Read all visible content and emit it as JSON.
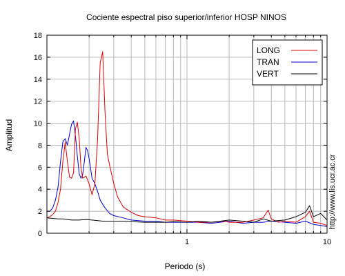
{
  "chart_data": {
    "type": "line",
    "title": "Cociente espectral piso superior/inferior  HOSP NINOS",
    "xlabel": "Periodo (s)",
    "ylabel": "Amplitud",
    "x_scale": "log",
    "xlim": [
      0.1,
      10
    ],
    "ylim": [
      0,
      18
    ],
    "x_ticks": [
      {
        "value": 1,
        "label": "1"
      },
      {
        "value": 10,
        "label": "10"
      }
    ],
    "y_ticks": [
      0,
      2,
      4,
      6,
      8,
      10,
      12,
      14,
      16,
      18
    ],
    "grid": true,
    "legend_position": "top-right",
    "series": [
      {
        "name": "LONG",
        "color": "#e00000",
        "points": [
          [
            0.1,
            1.4
          ],
          [
            0.105,
            1.5
          ],
          [
            0.11,
            1.7
          ],
          [
            0.115,
            2.0
          ],
          [
            0.12,
            2.8
          ],
          [
            0.125,
            4.0
          ],
          [
            0.13,
            6.5
          ],
          [
            0.135,
            8.3
          ],
          [
            0.14,
            6.5
          ],
          [
            0.145,
            5.1
          ],
          [
            0.15,
            5.0
          ],
          [
            0.155,
            5.5
          ],
          [
            0.16,
            9.5
          ],
          [
            0.165,
            10.1
          ],
          [
            0.17,
            8.6
          ],
          [
            0.175,
            6.0
          ],
          [
            0.18,
            5.0
          ],
          [
            0.19,
            5.2
          ],
          [
            0.2,
            4.5
          ],
          [
            0.21,
            3.5
          ],
          [
            0.22,
            4.5
          ],
          [
            0.23,
            8.5
          ],
          [
            0.24,
            15.5
          ],
          [
            0.25,
            16.5
          ],
          [
            0.26,
            11.0
          ],
          [
            0.27,
            7.2
          ],
          [
            0.28,
            6.2
          ],
          [
            0.3,
            4.5
          ],
          [
            0.32,
            3.3
          ],
          [
            0.35,
            2.4
          ],
          [
            0.4,
            1.9
          ],
          [
            0.45,
            1.6
          ],
          [
            0.5,
            1.5
          ],
          [
            0.6,
            1.4
          ],
          [
            0.7,
            1.2
          ],
          [
            0.8,
            1.2
          ],
          [
            1.0,
            1.1
          ],
          [
            1.2,
            1.0
          ],
          [
            1.5,
            1.0
          ],
          [
            1.8,
            1.1
          ],
          [
            2.0,
            1.0
          ],
          [
            2.5,
            1.0
          ],
          [
            3.0,
            1.2
          ],
          [
            3.5,
            1.4
          ],
          [
            3.8,
            2.1
          ],
          [
            4.0,
            1.3
          ],
          [
            4.5,
            1.0
          ],
          [
            5.0,
            1.1
          ],
          [
            6.0,
            1.0
          ],
          [
            7.0,
            1.5
          ],
          [
            7.5,
            2.0
          ],
          [
            8.0,
            1.0
          ],
          [
            9.0,
            0.9
          ],
          [
            10.0,
            0.7
          ]
        ]
      },
      {
        "name": "TRAN",
        "color": "#0000cc",
        "points": [
          [
            0.1,
            2.0
          ],
          [
            0.105,
            2.0
          ],
          [
            0.11,
            2.3
          ],
          [
            0.115,
            3.0
          ],
          [
            0.12,
            4.2
          ],
          [
            0.125,
            6.5
          ],
          [
            0.13,
            8.3
          ],
          [
            0.135,
            8.6
          ],
          [
            0.14,
            8.0
          ],
          [
            0.145,
            9.0
          ],
          [
            0.15,
            9.9
          ],
          [
            0.155,
            10.2
          ],
          [
            0.16,
            8.8
          ],
          [
            0.165,
            7.0
          ],
          [
            0.17,
            5.4
          ],
          [
            0.175,
            5.0
          ],
          [
            0.18,
            5.3
          ],
          [
            0.185,
            6.5
          ],
          [
            0.19,
            7.8
          ],
          [
            0.195,
            7.5
          ],
          [
            0.2,
            6.8
          ],
          [
            0.21,
            5.0
          ],
          [
            0.22,
            4.5
          ],
          [
            0.23,
            3.8
          ],
          [
            0.24,
            3.0
          ],
          [
            0.26,
            2.3
          ],
          [
            0.28,
            1.8
          ],
          [
            0.3,
            1.6
          ],
          [
            0.35,
            1.4
          ],
          [
            0.4,
            1.2
          ],
          [
            0.5,
            1.1
          ],
          [
            0.6,
            1.1
          ],
          [
            0.7,
            1.0
          ],
          [
            0.8,
            1.0
          ],
          [
            1.0,
            1.0
          ],
          [
            1.2,
            1.0
          ],
          [
            1.5,
            0.9
          ],
          [
            2.0,
            1.1
          ],
          [
            2.5,
            0.9
          ],
          [
            3.0,
            1.0
          ],
          [
            3.5,
            1.0
          ],
          [
            4.0,
            1.1
          ],
          [
            5.0,
            1.0
          ],
          [
            6.0,
            0.9
          ],
          [
            7.0,
            1.1
          ],
          [
            8.0,
            0.8
          ],
          [
            9.0,
            0.7
          ],
          [
            10.0,
            0.6
          ]
        ]
      },
      {
        "name": "VERT",
        "color": "#000000",
        "points": [
          [
            0.1,
            1.4
          ],
          [
            0.11,
            1.35
          ],
          [
            0.12,
            1.3
          ],
          [
            0.13,
            1.3
          ],
          [
            0.14,
            1.25
          ],
          [
            0.15,
            1.2
          ],
          [
            0.17,
            1.2
          ],
          [
            0.19,
            1.25
          ],
          [
            0.21,
            1.2
          ],
          [
            0.25,
            1.1
          ],
          [
            0.3,
            1.1
          ],
          [
            0.35,
            1.1
          ],
          [
            0.4,
            1.05
          ],
          [
            0.5,
            1.0
          ],
          [
            0.6,
            1.0
          ],
          [
            0.7,
            1.0
          ],
          [
            0.8,
            1.05
          ],
          [
            1.0,
            1.0
          ],
          [
            1.2,
            1.1
          ],
          [
            1.5,
            1.0
          ],
          [
            2.0,
            1.2
          ],
          [
            2.5,
            1.1
          ],
          [
            3.0,
            1.0
          ],
          [
            3.5,
            1.3
          ],
          [
            4.0,
            1.1
          ],
          [
            5.0,
            1.2
          ],
          [
            6.0,
            1.5
          ],
          [
            7.0,
            1.9
          ],
          [
            7.5,
            2.5
          ],
          [
            8.0,
            1.5
          ],
          [
            9.0,
            1.8
          ],
          [
            10.0,
            1.2
          ]
        ]
      }
    ]
  },
  "side_text": "http://www.lis.ucr.ac.cr"
}
